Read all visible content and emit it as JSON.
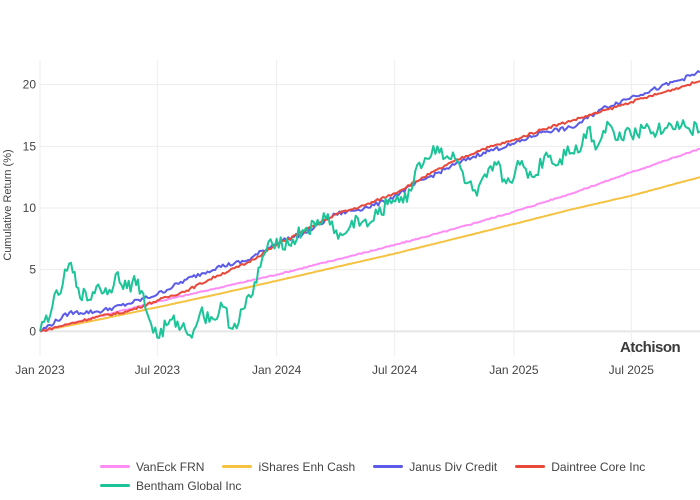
{
  "watermark": "Atchison",
  "chart_data": {
    "type": "line",
    "ylabel": "Cumulative Return (%)",
    "xlabel": "",
    "title": "",
    "x_range": [
      "2023-01-01",
      "2025-10-15"
    ],
    "ylim": [
      -2,
      22
    ],
    "y_ticks": [
      0,
      5,
      10,
      15,
      20
    ],
    "x_ticks": [
      {
        "date": "2023-01-01",
        "label": "Jan 2023"
      },
      {
        "date": "2023-07-01",
        "label": "Jul 2023"
      },
      {
        "date": "2024-01-01",
        "label": "Jan 2024"
      },
      {
        "date": "2024-07-01",
        "label": "Jul 2024"
      },
      {
        "date": "2025-01-01",
        "label": "Jan 2025"
      },
      {
        "date": "2025-07-01",
        "label": "Jul 2025"
      }
    ],
    "grid": true,
    "legend_position": "bottom",
    "series": [
      {
        "name": "VanEck FRN",
        "color": "#ff8cf5",
        "points": [
          [
            "2023-01-01",
            0
          ],
          [
            "2023-04-01",
            1.2
          ],
          [
            "2023-07-01",
            2.4
          ],
          [
            "2023-10-01",
            3.5
          ],
          [
            "2024-01-01",
            4.6
          ],
          [
            "2024-04-01",
            5.8
          ],
          [
            "2024-07-01",
            7.0
          ],
          [
            "2024-10-01",
            8.3
          ],
          [
            "2025-01-01",
            9.7
          ],
          [
            "2025-04-01",
            11.2
          ],
          [
            "2025-07-01",
            12.9
          ],
          [
            "2025-10-15",
            14.8
          ]
        ]
      },
      {
        "name": "iShares Enh Cash",
        "color": "#f5c242",
        "points": [
          [
            "2023-01-01",
            0
          ],
          [
            "2023-04-01",
            0.95
          ],
          [
            "2023-07-01",
            1.95
          ],
          [
            "2023-10-01",
            3.0
          ],
          [
            "2024-01-01",
            4.1
          ],
          [
            "2024-04-01",
            5.2
          ],
          [
            "2024-07-01",
            6.3
          ],
          [
            "2024-10-01",
            7.5
          ],
          [
            "2025-01-01",
            8.7
          ],
          [
            "2025-04-01",
            9.9
          ],
          [
            "2025-07-01",
            11.0
          ],
          [
            "2025-10-15",
            12.5
          ]
        ]
      },
      {
        "name": "Janus Div Credit",
        "color": "#5b5be8",
        "points": [
          [
            "2023-01-01",
            0
          ],
          [
            "2023-02-15",
            1.5
          ],
          [
            "2023-04-01",
            1.6
          ],
          [
            "2023-05-15",
            2.2
          ],
          [
            "2023-07-01",
            3.0
          ],
          [
            "2023-08-15",
            4.2
          ],
          [
            "2023-10-01",
            5.2
          ],
          [
            "2023-11-15",
            5.7
          ],
          [
            "2024-01-01",
            7.2
          ],
          [
            "2024-02-15",
            8.0
          ],
          [
            "2024-04-01",
            9.5
          ],
          [
            "2024-05-15",
            10.0
          ],
          [
            "2024-06-15",
            10.5
          ],
          [
            "2024-07-01",
            11.0
          ],
          [
            "2024-08-15",
            12.3
          ],
          [
            "2024-10-01",
            13.5
          ],
          [
            "2024-11-15",
            14.5
          ],
          [
            "2025-01-01",
            15.2
          ],
          [
            "2025-02-15",
            16.2
          ],
          [
            "2025-04-01",
            16.5
          ],
          [
            "2025-05-15",
            18.0
          ],
          [
            "2025-07-01",
            19.0
          ],
          [
            "2025-08-15",
            19.8
          ],
          [
            "2025-10-15",
            21.0
          ]
        ]
      },
      {
        "name": "Daintree Core Inc",
        "color": "#e8493a",
        "points": [
          [
            "2023-01-01",
            0
          ],
          [
            "2023-02-15",
            0.6
          ],
          [
            "2023-04-01",
            1.2
          ],
          [
            "2023-05-15",
            1.6
          ],
          [
            "2023-07-01",
            2.5
          ],
          [
            "2023-08-15",
            3.3
          ],
          [
            "2023-10-01",
            4.5
          ],
          [
            "2023-11-15",
            5.5
          ],
          [
            "2024-01-01",
            7.0
          ],
          [
            "2024-02-15",
            8.2
          ],
          [
            "2024-04-01",
            9.5
          ],
          [
            "2024-05-15",
            10.2
          ],
          [
            "2024-07-01",
            11.2
          ],
          [
            "2024-08-15",
            12.5
          ],
          [
            "2024-10-01",
            13.8
          ],
          [
            "2024-11-15",
            14.8
          ],
          [
            "2025-01-01",
            15.5
          ],
          [
            "2025-02-15",
            16.4
          ],
          [
            "2025-04-01",
            17.1
          ],
          [
            "2025-05-15",
            17.8
          ],
          [
            "2025-07-01",
            18.6
          ],
          [
            "2025-08-15",
            19.3
          ],
          [
            "2025-10-15",
            20.3
          ]
        ]
      },
      {
        "name": "Bentham Global Inc",
        "color": "#1cc497",
        "points": [
          [
            "2023-01-01",
            0
          ],
          [
            "2023-01-20",
            2.0
          ],
          [
            "2023-02-05",
            3.8
          ],
          [
            "2023-02-15",
            5.5
          ],
          [
            "2023-03-01",
            3.5
          ],
          [
            "2023-03-15",
            2.5
          ],
          [
            "2023-04-01",
            3.8
          ],
          [
            "2023-04-15",
            3.0
          ],
          [
            "2023-05-01",
            4.8
          ],
          [
            "2023-05-15",
            3.5
          ],
          [
            "2023-06-01",
            4.2
          ],
          [
            "2023-06-15",
            1.5
          ],
          [
            "2023-07-01",
            -0.5
          ],
          [
            "2023-07-15",
            0.5
          ],
          [
            "2023-08-01",
            0.8
          ],
          [
            "2023-08-20",
            -0.3
          ],
          [
            "2023-09-05",
            1.5
          ],
          [
            "2023-09-25",
            1.0
          ],
          [
            "2023-10-10",
            2.0
          ],
          [
            "2023-10-25",
            0.2
          ],
          [
            "2023-11-10",
            1.8
          ],
          [
            "2023-11-25",
            3.0
          ],
          [
            "2023-12-10",
            6.0
          ],
          [
            "2024-01-01",
            7.5
          ],
          [
            "2024-01-20",
            7.0
          ],
          [
            "2024-02-10",
            8.2
          ],
          [
            "2024-03-01",
            8.5
          ],
          [
            "2024-03-20",
            9.5
          ],
          [
            "2024-04-05",
            7.5
          ],
          [
            "2024-04-20",
            8.2
          ],
          [
            "2024-05-05",
            9.2
          ],
          [
            "2024-05-20",
            8.5
          ],
          [
            "2024-06-05",
            9.5
          ],
          [
            "2024-06-20",
            10.3
          ],
          [
            "2024-07-05",
            11.0
          ],
          [
            "2024-07-20",
            10.5
          ],
          [
            "2024-08-05",
            13.5
          ],
          [
            "2024-08-20",
            14.0
          ],
          [
            "2024-09-05",
            15.0
          ],
          [
            "2024-09-20",
            14.2
          ],
          [
            "2024-10-05",
            13.8
          ],
          [
            "2024-10-20",
            12.0
          ],
          [
            "2024-11-05",
            11.0
          ],
          [
            "2024-11-20",
            12.5
          ],
          [
            "2024-12-05",
            13.5
          ],
          [
            "2024-12-20",
            12.0
          ],
          [
            "2025-01-10",
            13.5
          ],
          [
            "2025-02-01",
            12.5
          ],
          [
            "2025-02-20",
            14.5
          ],
          [
            "2025-03-10",
            13.5
          ],
          [
            "2025-03-25",
            15.0
          ],
          [
            "2025-04-10",
            14.5
          ],
          [
            "2025-04-25",
            16.5
          ],
          [
            "2025-05-10",
            15.0
          ],
          [
            "2025-05-25",
            17.0
          ],
          [
            "2025-06-10",
            15.5
          ],
          [
            "2025-06-25",
            16.5
          ],
          [
            "2025-07-10",
            16.0
          ],
          [
            "2025-07-25",
            16.8
          ],
          [
            "2025-08-10",
            16.2
          ],
          [
            "2025-08-25",
            16.5
          ],
          [
            "2025-09-10",
            17.0
          ],
          [
            "2025-09-25",
            16.5
          ],
          [
            "2025-10-15",
            16.2
          ]
        ]
      }
    ]
  }
}
